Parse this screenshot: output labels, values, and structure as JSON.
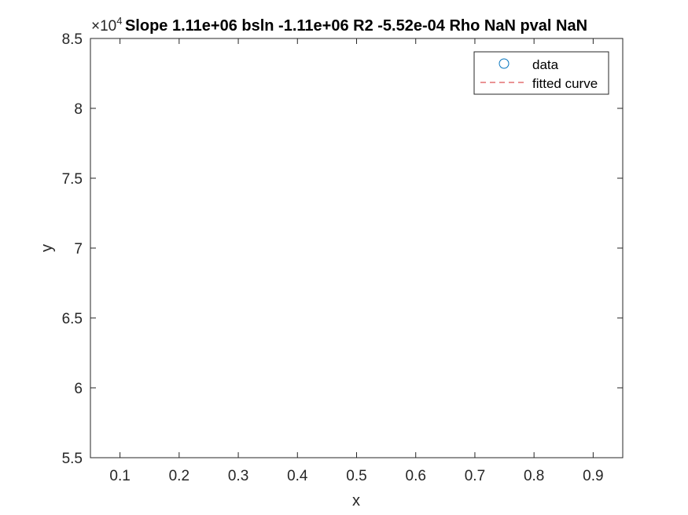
{
  "chart_data": {
    "type": "scatter",
    "title": "Slope 1.11e+06 bsln -1.11e+06 R2 -5.52e-04 Rho NaN pval NaN",
    "xlabel": "x",
    "ylabel": "y",
    "y_exponent_label": "×10",
    "y_exponent_power": "4",
    "xlim": [
      0.05,
      0.95
    ],
    "ylim": [
      5.5,
      8.5
    ],
    "y_scale_factor": 10000,
    "xticks": [
      0.1,
      0.2,
      0.3,
      0.4,
      0.5,
      0.6,
      0.7,
      0.8,
      0.9
    ],
    "xtick_labels": [
      "0.1",
      "0.2",
      "0.3",
      "0.4",
      "0.5",
      "0.6",
      "0.7",
      "0.8",
      "0.9"
    ],
    "yticks": [
      5.5,
      6,
      6.5,
      7,
      7.5,
      8,
      8.5
    ],
    "ytick_labels": [
      "5.5",
      "6",
      "6.5",
      "7",
      "7.5",
      "8",
      "8.5"
    ],
    "grid": false,
    "legend_position": "top-right",
    "series": [
      {
        "name": "data",
        "style": "marker-circle",
        "color": "#0072bd",
        "x": [],
        "y": []
      },
      {
        "name": "fitted curve",
        "style": "dashed-line",
        "color": "#d62728",
        "x": [],
        "y": []
      }
    ]
  }
}
